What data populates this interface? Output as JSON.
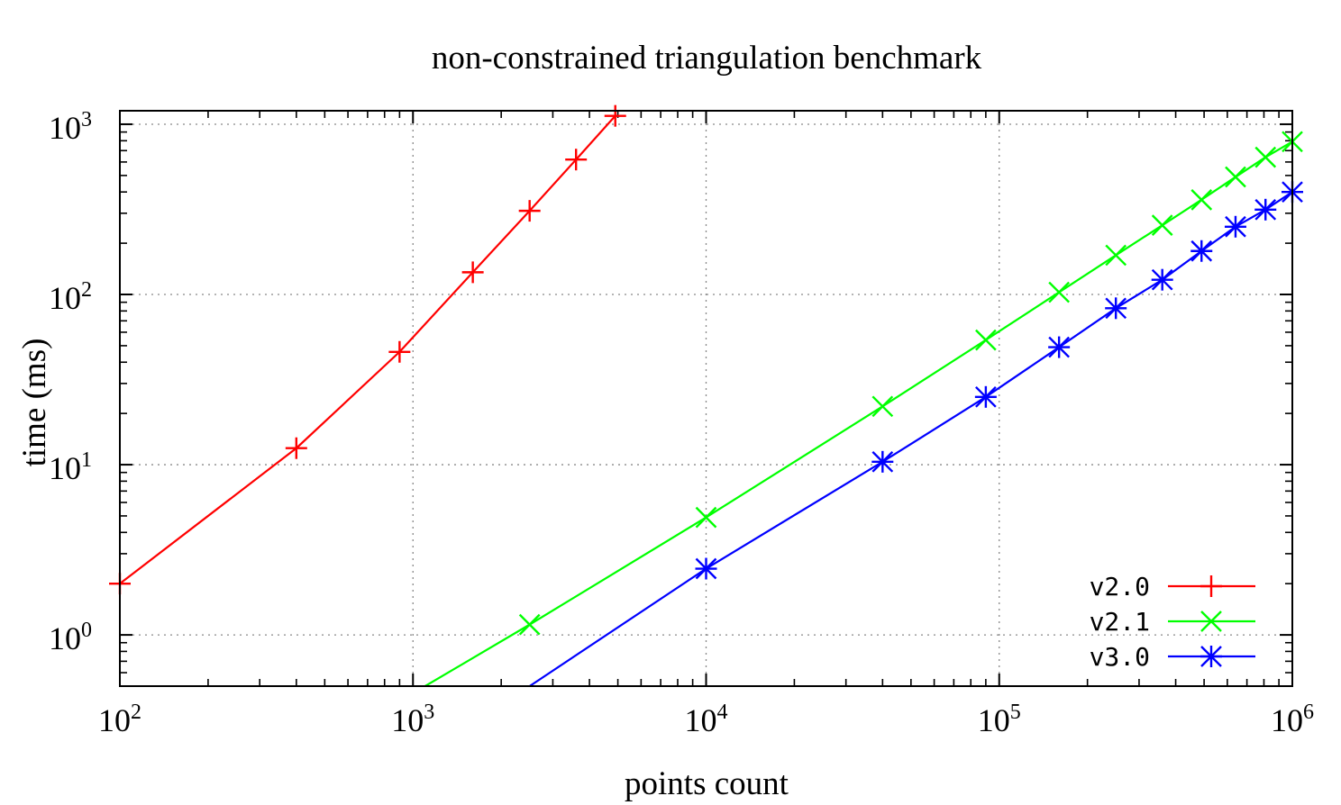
{
  "chart_data": {
    "type": "line",
    "title": "non-constrained triangulation benchmark",
    "xlabel": "points count",
    "ylabel": "time (ms)",
    "x_scale": "log",
    "y_scale": "log",
    "xlim": [
      100,
      1000000
    ],
    "ylim": [
      0.5,
      1200
    ],
    "grid": true,
    "legend_position": "bottom-right",
    "x_ticks": [
      {
        "base": "10",
        "exp": "2",
        "value": 100
      },
      {
        "base": "10",
        "exp": "3",
        "value": 1000
      },
      {
        "base": "10",
        "exp": "4",
        "value": 10000
      },
      {
        "base": "10",
        "exp": "5",
        "value": 100000
      },
      {
        "base": "10",
        "exp": "6",
        "value": 1000000
      }
    ],
    "y_ticks": [
      {
        "base": "10",
        "exp": "0",
        "value": 1
      },
      {
        "base": "10",
        "exp": "1",
        "value": 10
      },
      {
        "base": "10",
        "exp": "2",
        "value": 100
      },
      {
        "base": "10",
        "exp": "3",
        "value": 1000
      }
    ],
    "series": [
      {
        "name": "v2.0",
        "color": "#ff0000",
        "marker": "plus",
        "x": [
          100,
          400,
          900,
          1600,
          2500,
          3600,
          4900
        ],
        "y": [
          2.0,
          12.5,
          46,
          135,
          310,
          620,
          1120
        ]
      },
      {
        "name": "v2.1",
        "color": "#00ff00",
        "marker": "cross",
        "x": [
          1100,
          2500,
          10000,
          40000,
          90000,
          160000,
          250000,
          360000,
          490000,
          640000,
          810000,
          1000000
        ],
        "y": [
          0.5,
          1.15,
          4.9,
          22,
          54,
          103,
          170,
          255,
          360,
          490,
          640,
          790
        ]
      },
      {
        "name": "v3.0",
        "color": "#0000ff",
        "marker": "star",
        "x": [
          2500,
          10000,
          40000,
          90000,
          160000,
          250000,
          360000,
          490000,
          640000,
          810000,
          1000000
        ],
        "y": [
          0.5,
          2.45,
          10.4,
          25,
          49,
          83,
          122,
          180,
          250,
          315,
          400
        ]
      }
    ]
  }
}
